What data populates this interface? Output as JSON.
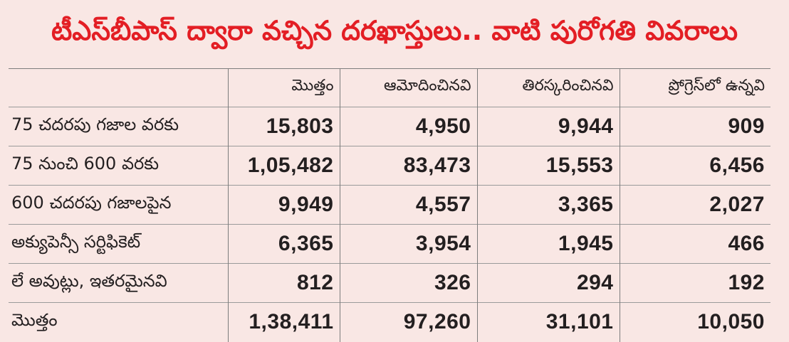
{
  "title": "టీఎస్‌బీపాస్ ద్వారా వచ్చిన దరఖాస్తులు.. వాటి పురోగతి వివరాలు",
  "colors": {
    "title": "#e31e24",
    "background": "#f9e7e4",
    "text": "#231f20",
    "rules": "#7d7d7d"
  },
  "chart_data": {
    "type": "table",
    "title": "టీఎస్‌బీపాస్ ద్వారా వచ్చిన దరఖాస్తులు.. వాటి పురోగతి వివరాలు",
    "columns": [
      "",
      "మొత్తం",
      "ఆమోదించినవి",
      "తిరస్కరించినవి",
      "ప్రోగ్రెస్‌లో ఉన్నవి"
    ],
    "rows": [
      {
        "label": "75 చదరపు గజాల వరకు",
        "values": [
          "15,803",
          "4,950",
          "9,944",
          "909"
        ]
      },
      {
        "label": "75 నుంచి 600 వరకు",
        "values": [
          "1,05,482",
          "83,473",
          "15,553",
          "6,456"
        ]
      },
      {
        "label": "600 చదరపు గజాలపైన",
        "values": [
          "9,949",
          "4,557",
          "3,365",
          "2,027"
        ]
      },
      {
        "label": "అక్యుపెన్సీ సర్టిఫికెట్",
        "values": [
          "6,365",
          "3,954",
          "1,945",
          "466"
        ]
      },
      {
        "label": "లే అవుట్లు, ఇతరమైనవి",
        "values": [
          "812",
          "326",
          "294",
          "192"
        ]
      },
      {
        "label": "మొత్తం",
        "values": [
          "1,38,411",
          "97,260",
          "31,101",
          "10,050"
        ]
      }
    ]
  }
}
